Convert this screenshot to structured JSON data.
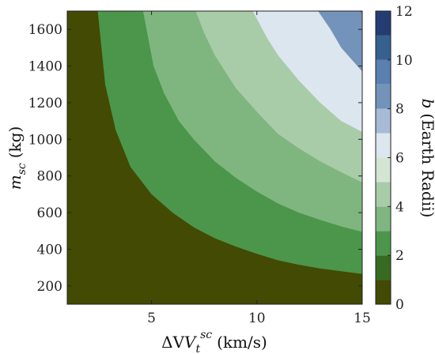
{
  "chart_data": {
    "type": "contourf",
    "x_axis": {
      "label_text": "ΔV",
      "label_sub": "t",
      "label_sup": "sc",
      "label_unit": "(km/s)",
      "range": [
        1,
        15
      ],
      "ticks": [
        5,
        10,
        15
      ]
    },
    "y_axis": {
      "label_text": "m",
      "label_sub": "sc",
      "label_unit": "(kg)",
      "range": [
        100,
        1700
      ],
      "ticks": [
        200,
        400,
        600,
        800,
        1000,
        1200,
        1400,
        1600
      ]
    },
    "colorbar": {
      "label_var": "b",
      "label_text": "(Earth Radii)",
      "range": [
        0,
        12
      ],
      "ticks": [
        0,
        2,
        4,
        6,
        8,
        10,
        12
      ]
    },
    "levels": [
      0,
      1,
      2,
      3,
      4,
      5,
      6,
      7,
      8,
      9,
      10,
      11,
      12
    ],
    "level_colors": [
      "#434A03",
      "#376B22",
      "#4B964B",
      "#7FB680",
      "#A8CCA8",
      "#D2E6D3",
      "#DCE6EF",
      "#A7BBD6",
      "#7493BA",
      "#5A7FB0",
      "#35608F",
      "#243C72",
      "#2B1650"
    ],
    "series": [
      {
        "level": 2,
        "x": [
          2.45,
          2.8,
          3.3,
          4,
          5,
          6,
          7,
          8,
          9,
          10,
          11,
          12,
          13,
          14,
          15
        ],
        "y": [
          1700,
          1300,
          1050,
          850,
          700,
          600,
          520,
          460,
          415,
          375,
          340,
          315,
          295,
          280,
          265
        ]
      },
      {
        "level": 3,
        "x": [
          4.6,
          5.1,
          5.6,
          6.3,
          7,
          8,
          9,
          10,
          11,
          12,
          13,
          14,
          15
        ],
        "y": [
          1700,
          1400,
          1250,
          1100,
          1000,
          880,
          790,
          715,
          650,
          600,
          560,
          525,
          495
        ]
      },
      {
        "level": 4,
        "x": [
          7.1,
          7.5,
          8,
          9,
          10,
          11,
          12,
          13,
          14,
          15
        ],
        "y": [
          1700,
          1580,
          1460,
          1280,
          1150,
          1030,
          950,
          880,
          820,
          765
        ]
      },
      {
        "level": 6,
        "x": [
          9.8,
          10.5,
          11,
          12,
          13,
          14,
          15
        ],
        "y": [
          1700,
          1550,
          1460,
          1320,
          1200,
          1100,
          1040
        ]
      },
      {
        "level": 8,
        "x": [
          12.9,
          13.5,
          14,
          15
        ],
        "y": [
          1700,
          1600,
          1500,
          1370
        ]
      },
      {
        "level": 10,
        "x": [
          14.85,
          15
        ],
        "y": [
          1700,
          1690
        ]
      }
    ]
  }
}
